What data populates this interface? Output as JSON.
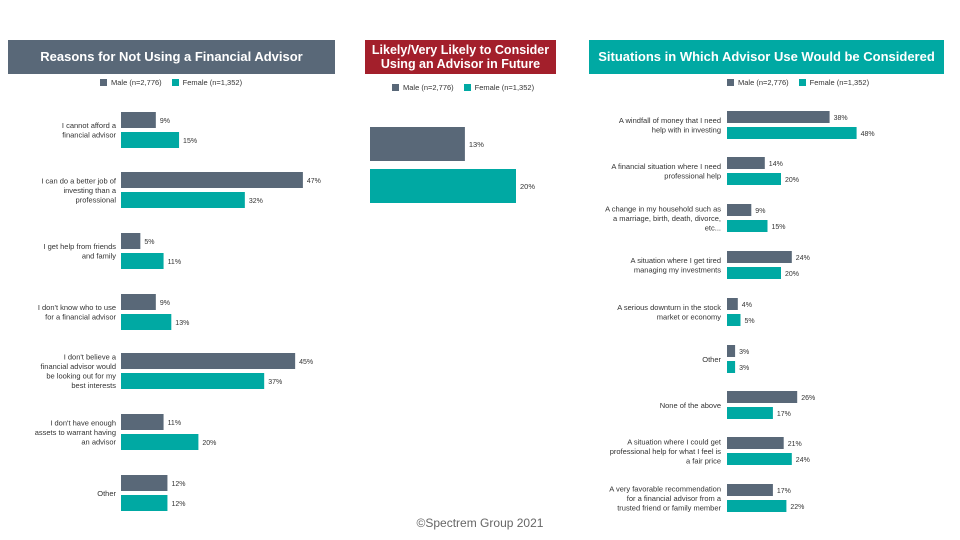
{
  "colors": {
    "male": "#596878",
    "female": "#00a9a3",
    "title_gray": "#596878",
    "title_red": "#a31f2b",
    "title_teal": "#00a9a3"
  },
  "footer": "©Spectrem Group 2021",
  "chart_data": [
    {
      "type": "bar",
      "orientation": "horizontal",
      "title": "Reasons for Not Using a Financial  Advisor",
      "legend": [
        "Male (n=2,776)",
        "Female (n=1,352)"
      ],
      "categories": [
        "I cannot afford a financial advisor",
        "I can do a better job of investing than a professional",
        "I get help from friends and family",
        "I don't know who to use for a financial advisor",
        "I don't believe a financial advisor would be looking out for my best interests",
        "I don't have enough assets to warrant having an advisor",
        "Other"
      ],
      "category_lines": [
        [
          "I cannot afford a",
          "financial advisor"
        ],
        [
          "I can do a better job of",
          "investing than a",
          "professional"
        ],
        [
          "I get help from friends",
          "and family"
        ],
        [
          "I don't know who to use",
          "for a financial advisor"
        ],
        [
          "I don't believe a",
          "financial advisor would",
          "be looking out for my",
          "best interests"
        ],
        [
          "I don't have enough",
          "assets to warrant having",
          "an advisor"
        ],
        [
          "Other"
        ]
      ],
      "series": [
        {
          "name": "Male (n=2,776)",
          "values": [
            9,
            47,
            5,
            9,
            45,
            11,
            12
          ]
        },
        {
          "name": "Female (n=1,352)",
          "values": [
            15,
            32,
            11,
            13,
            37,
            20,
            12
          ]
        }
      ],
      "value_suffix": "%"
    },
    {
      "type": "bar",
      "orientation": "horizontal",
      "title": "Likely/Very Likely  to Consider Using an Advisor in Future",
      "legend": [
        "Male (n=2,776)",
        "Female (n=1,352)"
      ],
      "categories": [
        ""
      ],
      "category_lines": [
        []
      ],
      "series": [
        {
          "name": "Male (n=2,776)",
          "values": [
            13
          ]
        },
        {
          "name": "Female (n=1,352)",
          "values": [
            20
          ]
        }
      ],
      "value_suffix": "%"
    },
    {
      "type": "bar",
      "orientation": "horizontal",
      "title": "Situations in Which Advisor Use Would be Considered",
      "legend": [
        "Male (n=2,776)",
        "Female (n=1,352)"
      ],
      "categories": [
        "A windfall of money that I need help with in investing",
        "A financial situation where I need professional help",
        "A change in my household such as a marriage, birth, death, divorce, etc...",
        "A situation where I get tired managing my investments",
        "A serious downturn in the stock market or economy",
        "Other",
        "None of the above",
        "A situation where I could get professional help for what I feel is a fair price",
        "A very favorable recommendation for a financial advisor from a trusted friend or family member"
      ],
      "category_lines": [
        [
          "A windfall of money that I need",
          "help with in investing"
        ],
        [
          "A financial situation where I need",
          "professional help"
        ],
        [
          "A change in my household such as",
          "a marriage, birth, death, divorce,",
          "etc..."
        ],
        [
          "A situation where I get tired",
          "managing my investments"
        ],
        [
          "A serious downturn in the stock",
          "market or economy"
        ],
        [
          "Other"
        ],
        [
          "None of the above"
        ],
        [
          "A situation where I could get",
          "professional help for what I feel is",
          "a fair price"
        ],
        [
          "A very favorable recommendation",
          "for a financial advisor from a",
          "trusted friend or family member"
        ]
      ],
      "series": [
        {
          "name": "Male (n=2,776)",
          "values": [
            38,
            14,
            9,
            24,
            4,
            3,
            26,
            21,
            17
          ]
        },
        {
          "name": "Female (n=1,352)",
          "values": [
            48,
            20,
            15,
            20,
            5,
            3,
            17,
            24,
            22
          ]
        }
      ],
      "value_suffix": "%"
    }
  ]
}
